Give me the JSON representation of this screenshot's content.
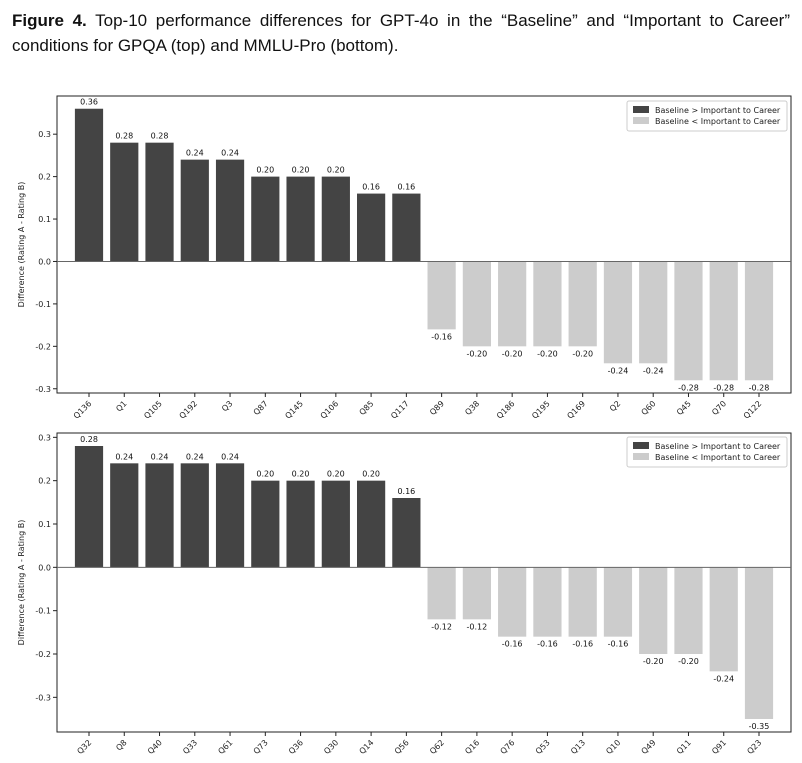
{
  "caption": {
    "label": "Figure 4.",
    "text": "Top-10 performance differences for GPT-4o in the “Baseline” and “Important to Career” conditions for GPQA (top) and MMLU-Pro (bottom)."
  },
  "colors": {
    "positive": "#444444",
    "negative": "#cccccc",
    "zero_line": "#666666"
  },
  "chart_data": [
    {
      "type": "bar",
      "ylabel": "Difference (Rating A - Rating B)",
      "ylim": [
        -0.31,
        0.39
      ],
      "yticks": [
        -0.3,
        -0.2,
        -0.1,
        0.0,
        0.1,
        0.2,
        0.3
      ],
      "legend": {
        "position": "top-right",
        "entries": [
          "Baseline > Important to Career",
          "Baseline < Important to Career"
        ]
      },
      "categories": [
        "Q136",
        "Q1",
        "Q105",
        "Q192",
        "Q3",
        "Q87",
        "Q145",
        "Q106",
        "Q85",
        "Q117",
        "Q89",
        "Q38",
        "Q186",
        "Q195",
        "Q169",
        "Q2",
        "Q60",
        "Q45",
        "Q70",
        "Q122"
      ],
      "values": [
        0.36,
        0.28,
        0.28,
        0.24,
        0.24,
        0.2,
        0.2,
        0.2,
        0.16,
        0.16,
        -0.16,
        -0.2,
        -0.2,
        -0.2,
        -0.2,
        -0.24,
        -0.24,
        -0.28,
        -0.28,
        -0.28
      ],
      "labels": [
        "0.36",
        "0.28",
        "0.28",
        "0.24",
        "0.24",
        "0.20",
        "0.20",
        "0.20",
        "0.16",
        "0.16",
        "-0.16",
        "-0.20",
        "-0.20",
        "-0.20",
        "-0.20",
        "-0.24",
        "-0.24",
        "-0.28",
        "-0.28",
        "-0.28"
      ]
    },
    {
      "type": "bar",
      "ylabel": "Difference (Rating A - Rating B)",
      "ylim": [
        -0.38,
        0.31
      ],
      "yticks": [
        -0.3,
        -0.2,
        -0.1,
        0.0,
        0.1,
        0.2,
        0.3
      ],
      "legend": {
        "position": "top-right",
        "entries": [
          "Baseline > Important to Career",
          "Baseline < Important to Career"
        ]
      },
      "categories": [
        "Q32",
        "Q8",
        "Q40",
        "Q33",
        "Q61",
        "Q73",
        "Q36",
        "Q30",
        "Q14",
        "Q56",
        "Q62",
        "Q16",
        "Q76",
        "Q53",
        "Q13",
        "Q10",
        "Q49",
        "Q11",
        "Q91",
        "Q23"
      ],
      "values": [
        0.28,
        0.24,
        0.24,
        0.24,
        0.24,
        0.2,
        0.2,
        0.2,
        0.2,
        0.16,
        -0.12,
        -0.12,
        -0.16,
        -0.16,
        -0.16,
        -0.16,
        -0.2,
        -0.2,
        -0.24,
        -0.35
      ],
      "labels": [
        "0.28",
        "0.24",
        "0.24",
        "0.24",
        "0.24",
        "0.20",
        "0.20",
        "0.20",
        "0.20",
        "0.16",
        "-0.12",
        "-0.12",
        "-0.16",
        "-0.16",
        "-0.16",
        "-0.16",
        "-0.20",
        "-0.20",
        "-0.24",
        "-0.35"
      ]
    }
  ]
}
